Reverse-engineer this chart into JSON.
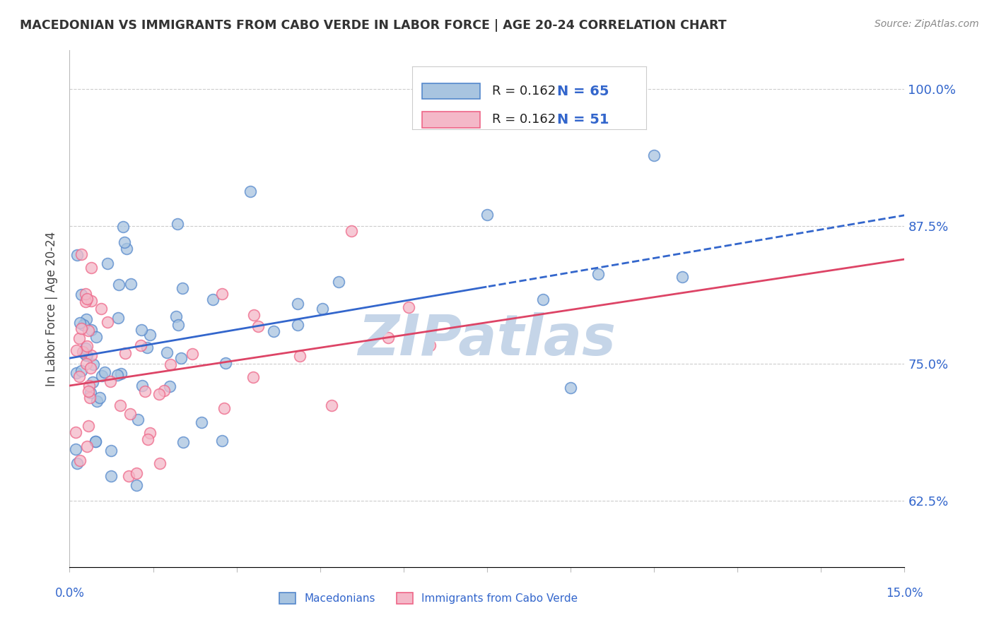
{
  "title": "MACEDONIAN VS IMMIGRANTS FROM CABO VERDE IN LABOR FORCE | AGE 20-24 CORRELATION CHART",
  "source": "Source: ZipAtlas.com",
  "ylabel": "In Labor Force | Age 20-24",
  "y_ticks": [
    0.625,
    0.75,
    0.875,
    1.0
  ],
  "y_tick_labels": [
    "62.5%",
    "75.0%",
    "87.5%",
    "100.0%"
  ],
  "x_min": 0.0,
  "x_max": 0.15,
  "y_min": 0.565,
  "y_max": 1.035,
  "blue_R": "0.162",
  "blue_N": "65",
  "pink_R": "0.162",
  "pink_N": "51",
  "blue_label": "Macedonians",
  "pink_label": "Immigrants from Cabo Verde",
  "blue_color": "#A8C4E0",
  "pink_color": "#F4B8C8",
  "blue_edge_color": "#5588CC",
  "pink_edge_color": "#EE6688",
  "blue_trend_color": "#3366CC",
  "pink_trend_color": "#DD4466",
  "blue_trend_solid_end": 0.075,
  "pink_trend_end": 0.15,
  "watermark": "ZIPatlas",
  "watermark_color": "#C5D5E8",
  "label_color": "#3366CC",
  "R_text_color": "#222222",
  "N_text_color": "#3366CC"
}
